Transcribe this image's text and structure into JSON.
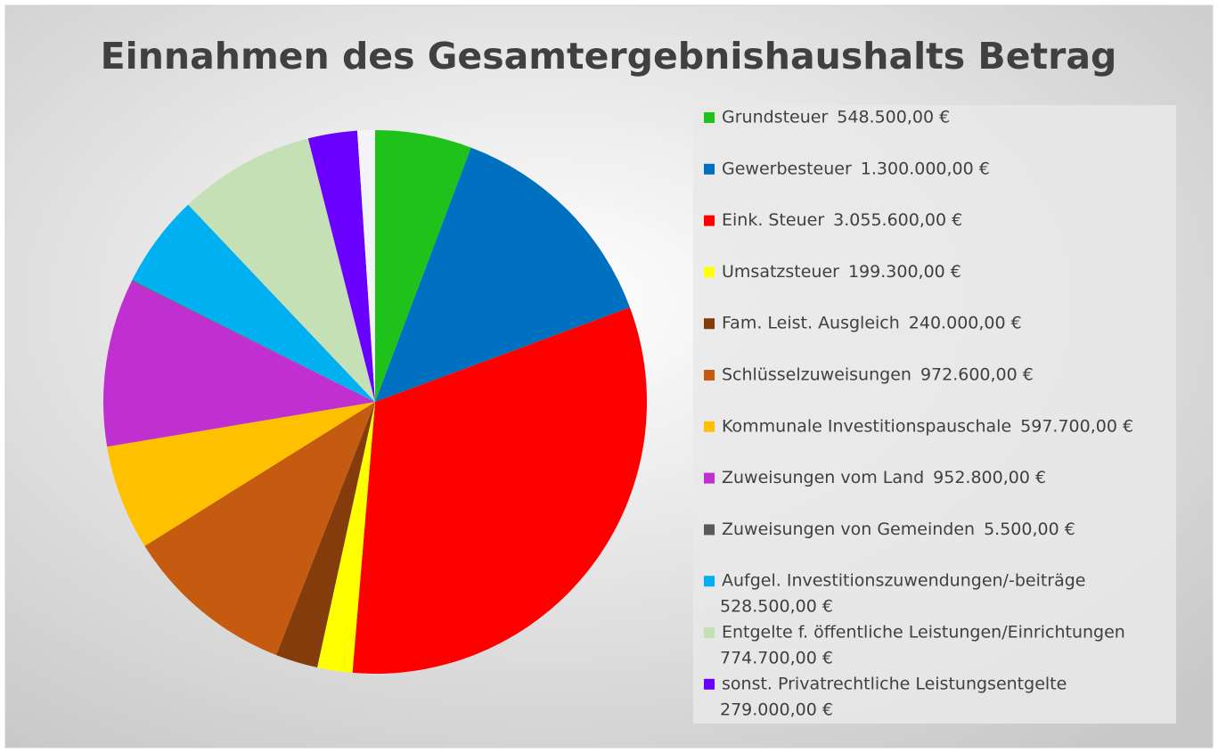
{
  "chart_data": {
    "type": "pie",
    "title": "Einnahmen des Gesamtergebnishaushalts Betrag",
    "categories": [
      "Grundsteuer",
      "Gewerbesteuer",
      "Eink. Steuer",
      "Umsatzsteuer",
      "Fam. Leist. Ausgleich",
      "Schlüsselzuweisungen",
      "Kommunale Investitionspauschale",
      "Zuweisungen vom Land",
      "Zuweisungen von Gemeinden",
      "Aufgel. Investitionszuwendungen/-beiträge",
      "Entgelte f. öffentliche Leistungen/Einrichtungen",
      "sonst. Privatrechtliche Leistungsentgelte",
      null
    ],
    "values": [
      548500,
      1300000,
      3055600,
      199300,
      240000,
      972600,
      597700,
      952800,
      5500,
      528500,
      774700,
      279000,
      100000
    ],
    "value_labels": [
      "548.500,00 €",
      "1.300.000,00 €",
      "3.055.600,00 €",
      "199.300,00 €",
      "240.000,00 €",
      "972.600,00 €",
      "597.700,00 €",
      "952.800,00 €",
      "5.500,00 €",
      "528.500,00 €",
      "774.700,00 €",
      "279.000,00 €",
      null
    ],
    "colors": [
      "#1fc21b",
      "#0070c0",
      "#ff0000",
      "#ffff00",
      "#843c0c",
      "#c55a11",
      "#ffc000",
      "#c030d0",
      "#595959",
      "#00b0f0",
      "#c5e0b4",
      "#6a00ff",
      "#f4f4f8"
    ],
    "legend": "right"
  }
}
